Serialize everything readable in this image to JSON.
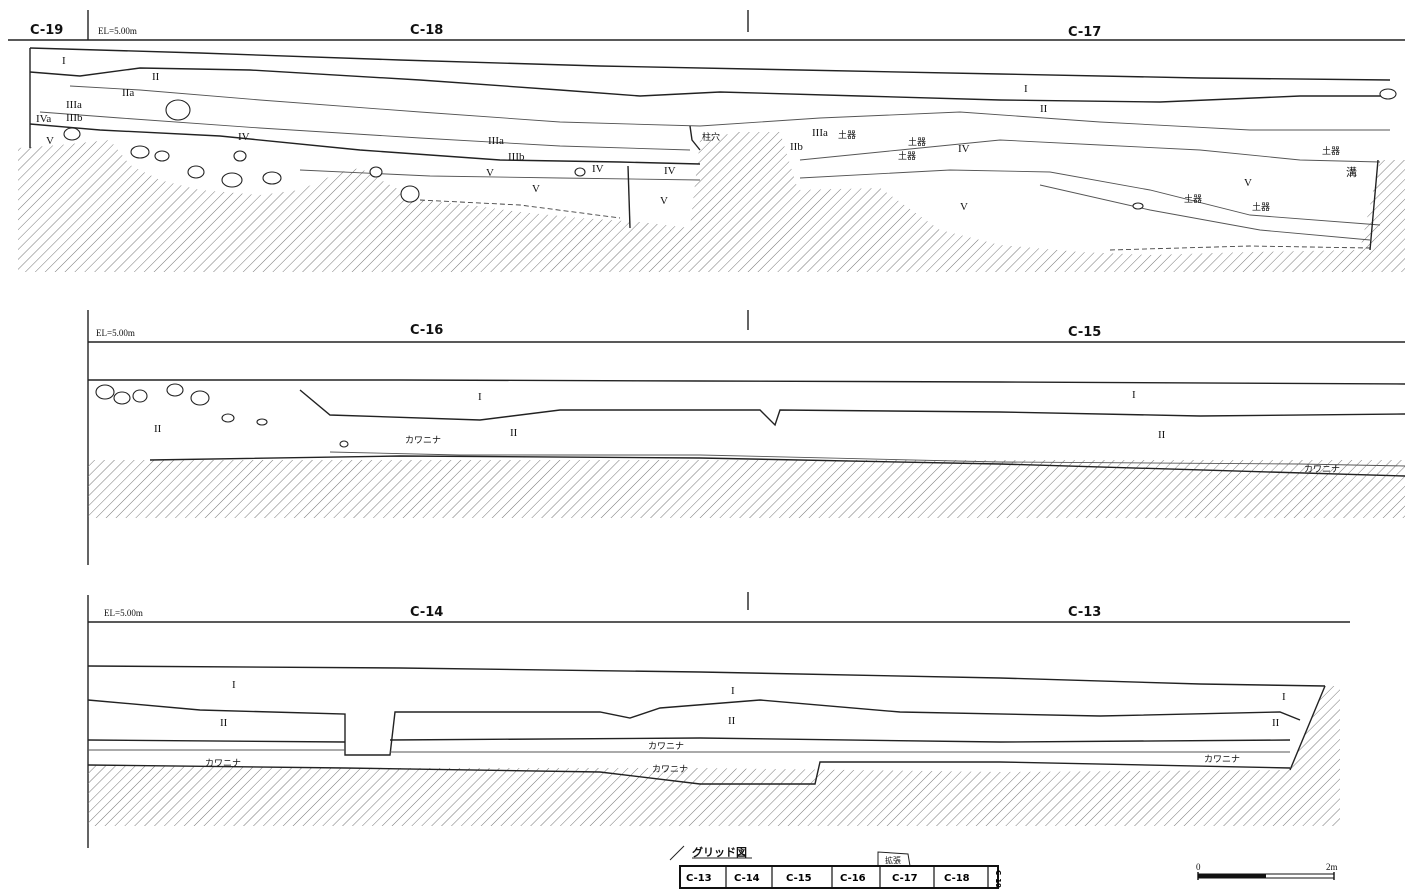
{
  "sections": [
    {
      "elevation": "EL=5.00m",
      "grids": [
        "C-19",
        "C-18",
        "C-17"
      ],
      "layers": [
        "I",
        "II",
        "IIIa",
        "IIIb",
        "IVa",
        "V",
        "IIa",
        "IIIa",
        "IIIb",
        "IV",
        "V",
        "V",
        "IV",
        "IV",
        "V",
        "I",
        "II",
        "IIIa",
        "IIb",
        "IV",
        "V",
        "V"
      ],
      "notes": [
        "柱穴",
        "土器",
        "土器",
        "土器",
        "土器",
        "溝",
        "土器",
        "土器"
      ]
    },
    {
      "elevation": "EL=5.00m",
      "grids": [
        "C-16",
        "C-15"
      ],
      "layers": [
        "I",
        "II",
        "II",
        "I",
        "II"
      ],
      "notes": [
        "カワニナ",
        "カワニナ"
      ]
    },
    {
      "elevation": "EL=5.00m",
      "grids": [
        "C-14",
        "C-13"
      ],
      "layers": [
        "I",
        "II",
        "I",
        "II",
        "I",
        "II"
      ],
      "notes": [
        "カワニナ",
        "カワニナ",
        "カワニナ",
        "カワニナ"
      ]
    }
  ],
  "grid_map": {
    "title": "グリッド図",
    "cells": [
      "C-13",
      "C-14",
      "C-15",
      "C-16",
      "C-17",
      "C-18",
      "C-19"
    ],
    "extension": "拡張"
  },
  "scale": {
    "start": "0",
    "end": "2m"
  }
}
